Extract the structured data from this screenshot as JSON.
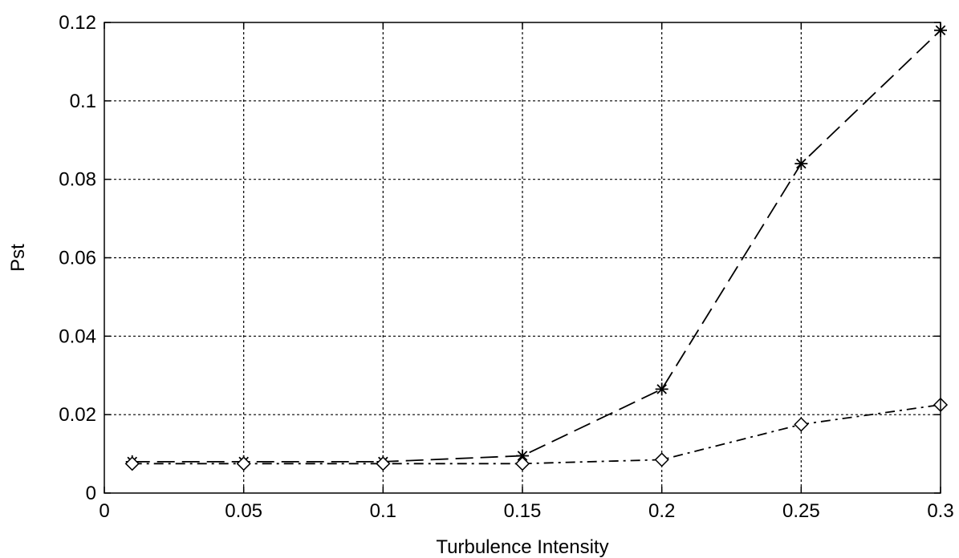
{
  "chart_data": {
    "type": "line",
    "xlabel": "Turbulence Intensity",
    "ylabel": "Pst",
    "xlim": [
      0,
      0.3
    ],
    "ylim": [
      0,
      0.12
    ],
    "xticks": [
      0,
      0.05,
      0.1,
      0.15,
      0.2,
      0.25,
      0.3
    ],
    "xtick_labels": [
      "0",
      "0.05",
      "0.1",
      "0.15",
      "0.2",
      "0.25",
      "0.3"
    ],
    "yticks": [
      0,
      0.02,
      0.04,
      0.06,
      0.08,
      0.1,
      0.12
    ],
    "ytick_labels": [
      "0",
      "0.02",
      "0.04",
      "0.06",
      "0.08",
      "0.1",
      "0.12"
    ],
    "grid": true,
    "grid_style": "dotted",
    "series": [
      {
        "marker": "asterisk",
        "line_style": "dashed",
        "color": "#000000",
        "x": [
          0.01,
          0.05,
          0.1,
          0.15,
          0.2,
          0.25,
          0.3
        ],
        "y": [
          0.008,
          0.008,
          0.008,
          0.0095,
          0.0265,
          0.084,
          0.118
        ]
      },
      {
        "marker": "diamond",
        "line_style": "dash-dot",
        "color": "#000000",
        "x": [
          0.01,
          0.05,
          0.1,
          0.15,
          0.2,
          0.25,
          0.3
        ],
        "y": [
          0.0075,
          0.0075,
          0.0075,
          0.0075,
          0.0085,
          0.0175,
          0.0225
        ]
      }
    ]
  }
}
